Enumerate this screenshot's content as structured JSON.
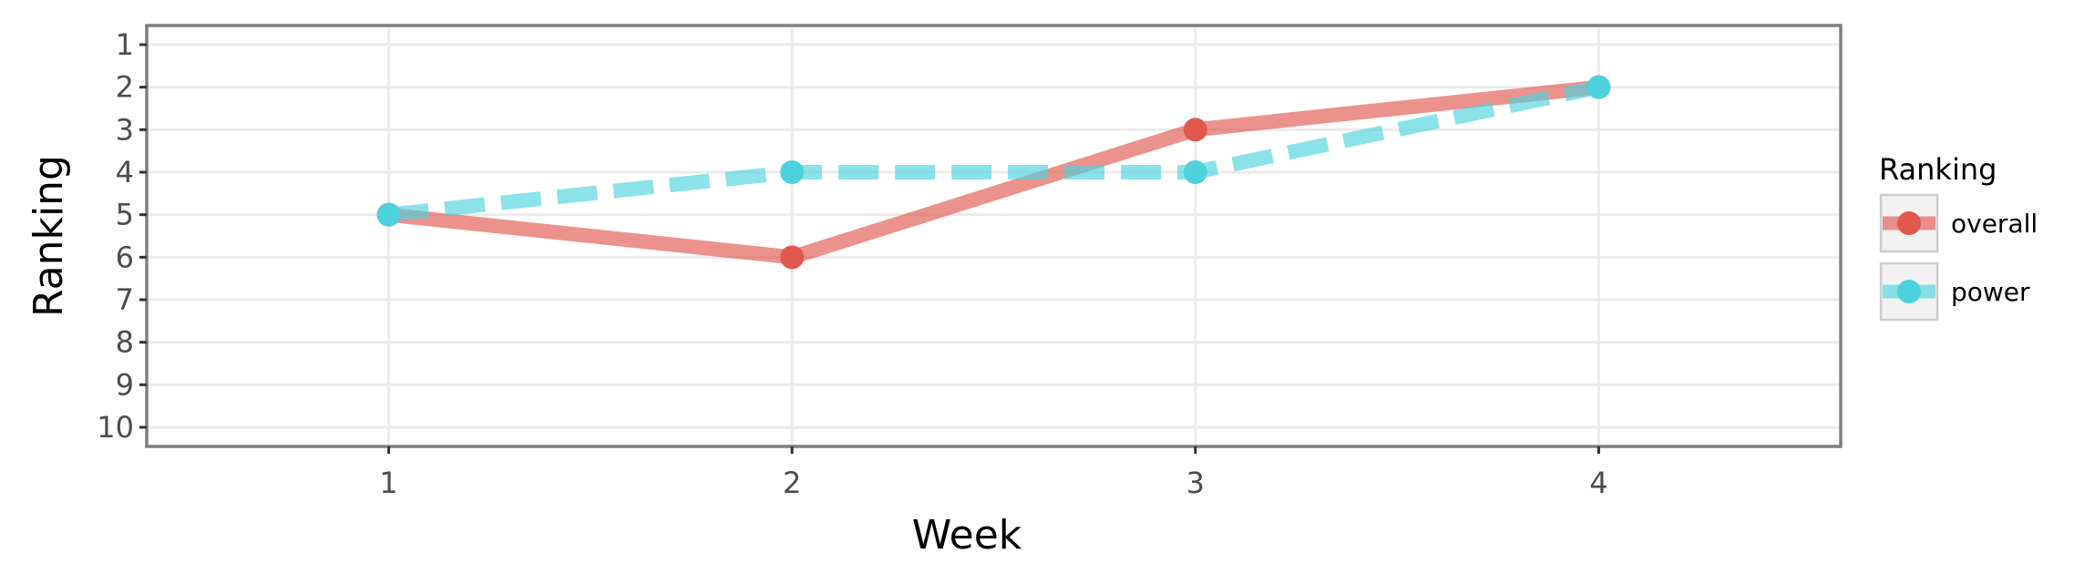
{
  "chart_data": {
    "type": "line",
    "title": "",
    "xlabel": "Week",
    "ylabel": "Ranking",
    "x": [
      1,
      2,
      3,
      4
    ],
    "x_tick_labels": [
      "1",
      "2",
      "3",
      "4"
    ],
    "xlim": [
      0.4,
      4.6
    ],
    "y_ticks": [
      1,
      2,
      3,
      4,
      5,
      6,
      7,
      8,
      9,
      10
    ],
    "y_tick_labels": [
      "1",
      "2",
      "3",
      "4",
      "5",
      "6",
      "7",
      "8",
      "9",
      "10"
    ],
    "ylim": [
      10.45,
      0.55
    ],
    "y_reversed": true,
    "grid": true,
    "legend": {
      "title": "Ranking",
      "position": "right"
    },
    "series": [
      {
        "name": "overall",
        "values": [
          5,
          6,
          3,
          2
        ],
        "color": "#e1584f",
        "line_style": "solid"
      },
      {
        "name": "power",
        "values": [
          5,
          4,
          4,
          2
        ],
        "color": "#4dd2dd",
        "line_style": "dashed"
      }
    ]
  }
}
